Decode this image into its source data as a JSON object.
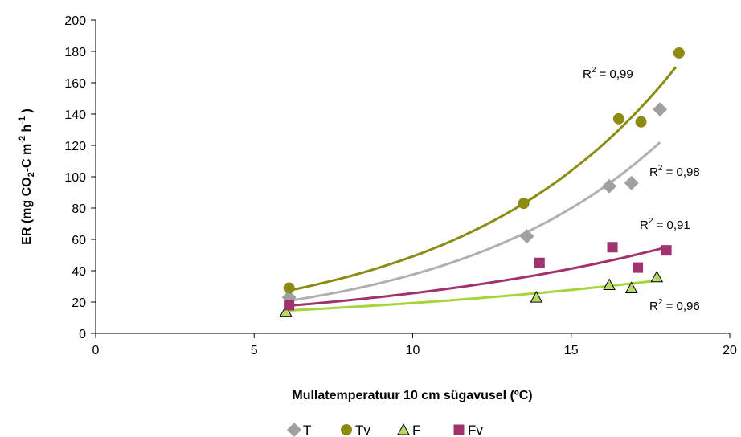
{
  "chart_data": {
    "type": "scatter",
    "xlabel": "Mullatemperatuur 10 cm sügavusel (ºC)",
    "ylabel": "ER (mg CO2-C m-2 h-1 )",
    "xlim": [
      0,
      20
    ],
    "ylim": [
      0,
      200
    ],
    "xticks": [
      0,
      5,
      10,
      15,
      20
    ],
    "yticks": [
      0,
      20,
      40,
      60,
      80,
      100,
      120,
      140,
      160,
      180,
      200
    ],
    "grid": false,
    "legend_position": "bottom",
    "series": [
      {
        "name": "T",
        "marker": "diamond",
        "color": "#a0a0a0",
        "trend_color": "#b0b0b0",
        "points": [
          [
            6.1,
            23
          ],
          [
            13.6,
            62
          ],
          [
            16.2,
            94
          ],
          [
            16.9,
            96
          ],
          [
            17.8,
            143
          ]
        ],
        "trend": {
          "x_range": [
            6.0,
            17.8
          ],
          "y_start": 20.5,
          "y_end": 122
        },
        "r2_text": "R² = 0,98"
      },
      {
        "name": "Tv",
        "marker": "circle",
        "color": "#8c8c14",
        "trend_color": "#8c8c14",
        "points": [
          [
            6.1,
            29
          ],
          [
            13.5,
            83
          ],
          [
            16.5,
            137
          ],
          [
            17.2,
            135
          ],
          [
            18.4,
            179
          ]
        ],
        "trend": {
          "x_range": [
            6.0,
            18.3
          ],
          "y_start": 27,
          "y_end": 170
        },
        "r2_text": "R² = 0,99"
      },
      {
        "name": "F",
        "marker": "triangle",
        "color": "#b5d96a",
        "trend_color": "#a6d43c",
        "points": [
          [
            6.0,
            14
          ],
          [
            13.9,
            23
          ],
          [
            16.2,
            31
          ],
          [
            16.9,
            29
          ],
          [
            17.7,
            36
          ]
        ],
        "trend": {
          "x_range": [
            6.0,
            17.8
          ],
          "y_start": 14.5,
          "y_end": 34
        },
        "r2_text": "R² = 0,96"
      },
      {
        "name": "Fv",
        "marker": "square",
        "color": "#a0336e",
        "trend_color": "#a0336e",
        "points": [
          [
            6.1,
            18
          ],
          [
            14.0,
            45
          ],
          [
            16.3,
            55
          ],
          [
            17.1,
            42
          ],
          [
            18.0,
            53
          ]
        ],
        "trend": {
          "x_range": [
            6.0,
            18.0
          ],
          "y_start": 17.5,
          "y_end": 55
        },
        "r2_text": "R² = 0,91"
      }
    ]
  }
}
